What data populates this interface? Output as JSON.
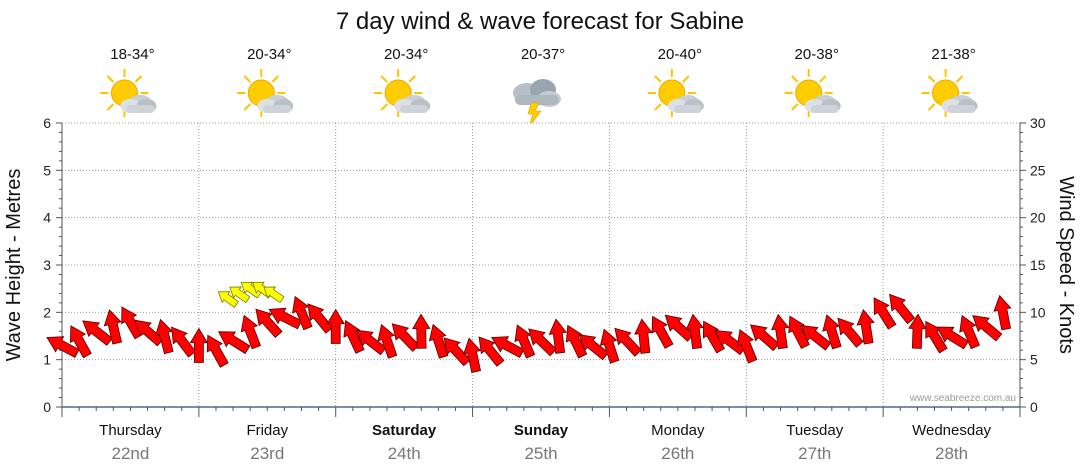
{
  "chart_data": {
    "type": "line",
    "title": "7 day wind & wave forecast for Sabine",
    "ylabel_left": "Wave Height - Metres",
    "ylabel_right": "Wind Speed - Knots",
    "ylim_left": [
      0,
      6
    ],
    "ylim_right": [
      0,
      30
    ],
    "yticks_left": [
      "0",
      "1",
      "2",
      "3",
      "4",
      "5",
      "6"
    ],
    "yticks_right": [
      "0",
      "5",
      "10",
      "15",
      "20",
      "25",
      "30"
    ],
    "grid": true,
    "credit": "www.seabreeze.com.au",
    "days": [
      {
        "name": "Thursday",
        "date": "22nd",
        "temp": "18-34°",
        "icon": "sun-cloud-icon",
        "bold": false
      },
      {
        "name": "Friday",
        "date": "23rd",
        "temp": "20-34°",
        "icon": "sun-cloud-icon",
        "bold": false
      },
      {
        "name": "Saturday",
        "date": "24th",
        "temp": "20-34°",
        "icon": "sun-cloud-icon",
        "bold": true
      },
      {
        "name": "Sunday",
        "date": "25th",
        "temp": "20-37°",
        "icon": "storm-cloud-icon",
        "bold": true
      },
      {
        "name": "Monday",
        "date": "26th",
        "temp": "20-40°",
        "icon": "sun-cloud-icon",
        "bold": false
      },
      {
        "name": "Tuesday",
        "date": "27th",
        "temp": "20-38°",
        "icon": "sun-cloud-icon",
        "bold": false
      },
      {
        "name": "Wednesday",
        "date": "28th",
        "temp": "21-38°",
        "icon": "sun-cloud-icon",
        "bold": false
      }
    ],
    "wind_series": {
      "name": "Wind Speed",
      "units": "knots",
      "x_hours": [
        0,
        3,
        6,
        9,
        12,
        15,
        18,
        21,
        24,
        27,
        30,
        33,
        36,
        39,
        42,
        45,
        48,
        51,
        54,
        57,
        60,
        63,
        66,
        69,
        72,
        75,
        78,
        81,
        84,
        87,
        90,
        93,
        96,
        99,
        102,
        105,
        108,
        111,
        114,
        117,
        120,
        123,
        126,
        129,
        132,
        135,
        138,
        141,
        144,
        147,
        150,
        153,
        156,
        159,
        162,
        165
      ],
      "speed_knots": [
        6.5,
        7,
        8,
        8.5,
        9,
        8,
        7.5,
        7,
        6.5,
        6,
        7,
        8,
        9,
        9.5,
        10,
        9.5,
        8.5,
        7.5,
        7,
        7,
        7.5,
        8,
        7,
        6,
        5.5,
        6,
        6.5,
        7,
        7,
        7.5,
        7,
        6.5,
        6.5,
        7,
        7.5,
        8,
        8.5,
        8,
        7.5,
        7,
        6.5,
        7.5,
        8,
        8,
        7.5,
        8,
        8,
        8.5,
        10,
        10.5,
        8,
        7.5,
        7.5,
        8,
        8.5,
        10
      ],
      "color": "#ff0000"
    },
    "gust_series": {
      "name": "Wind Gusts",
      "units": "knots",
      "x_hours": [
        29,
        31,
        33,
        35,
        37
      ],
      "speed_knots": [
        11.5,
        12,
        12.5,
        12.5,
        12
      ],
      "color": "#ffff00"
    }
  }
}
